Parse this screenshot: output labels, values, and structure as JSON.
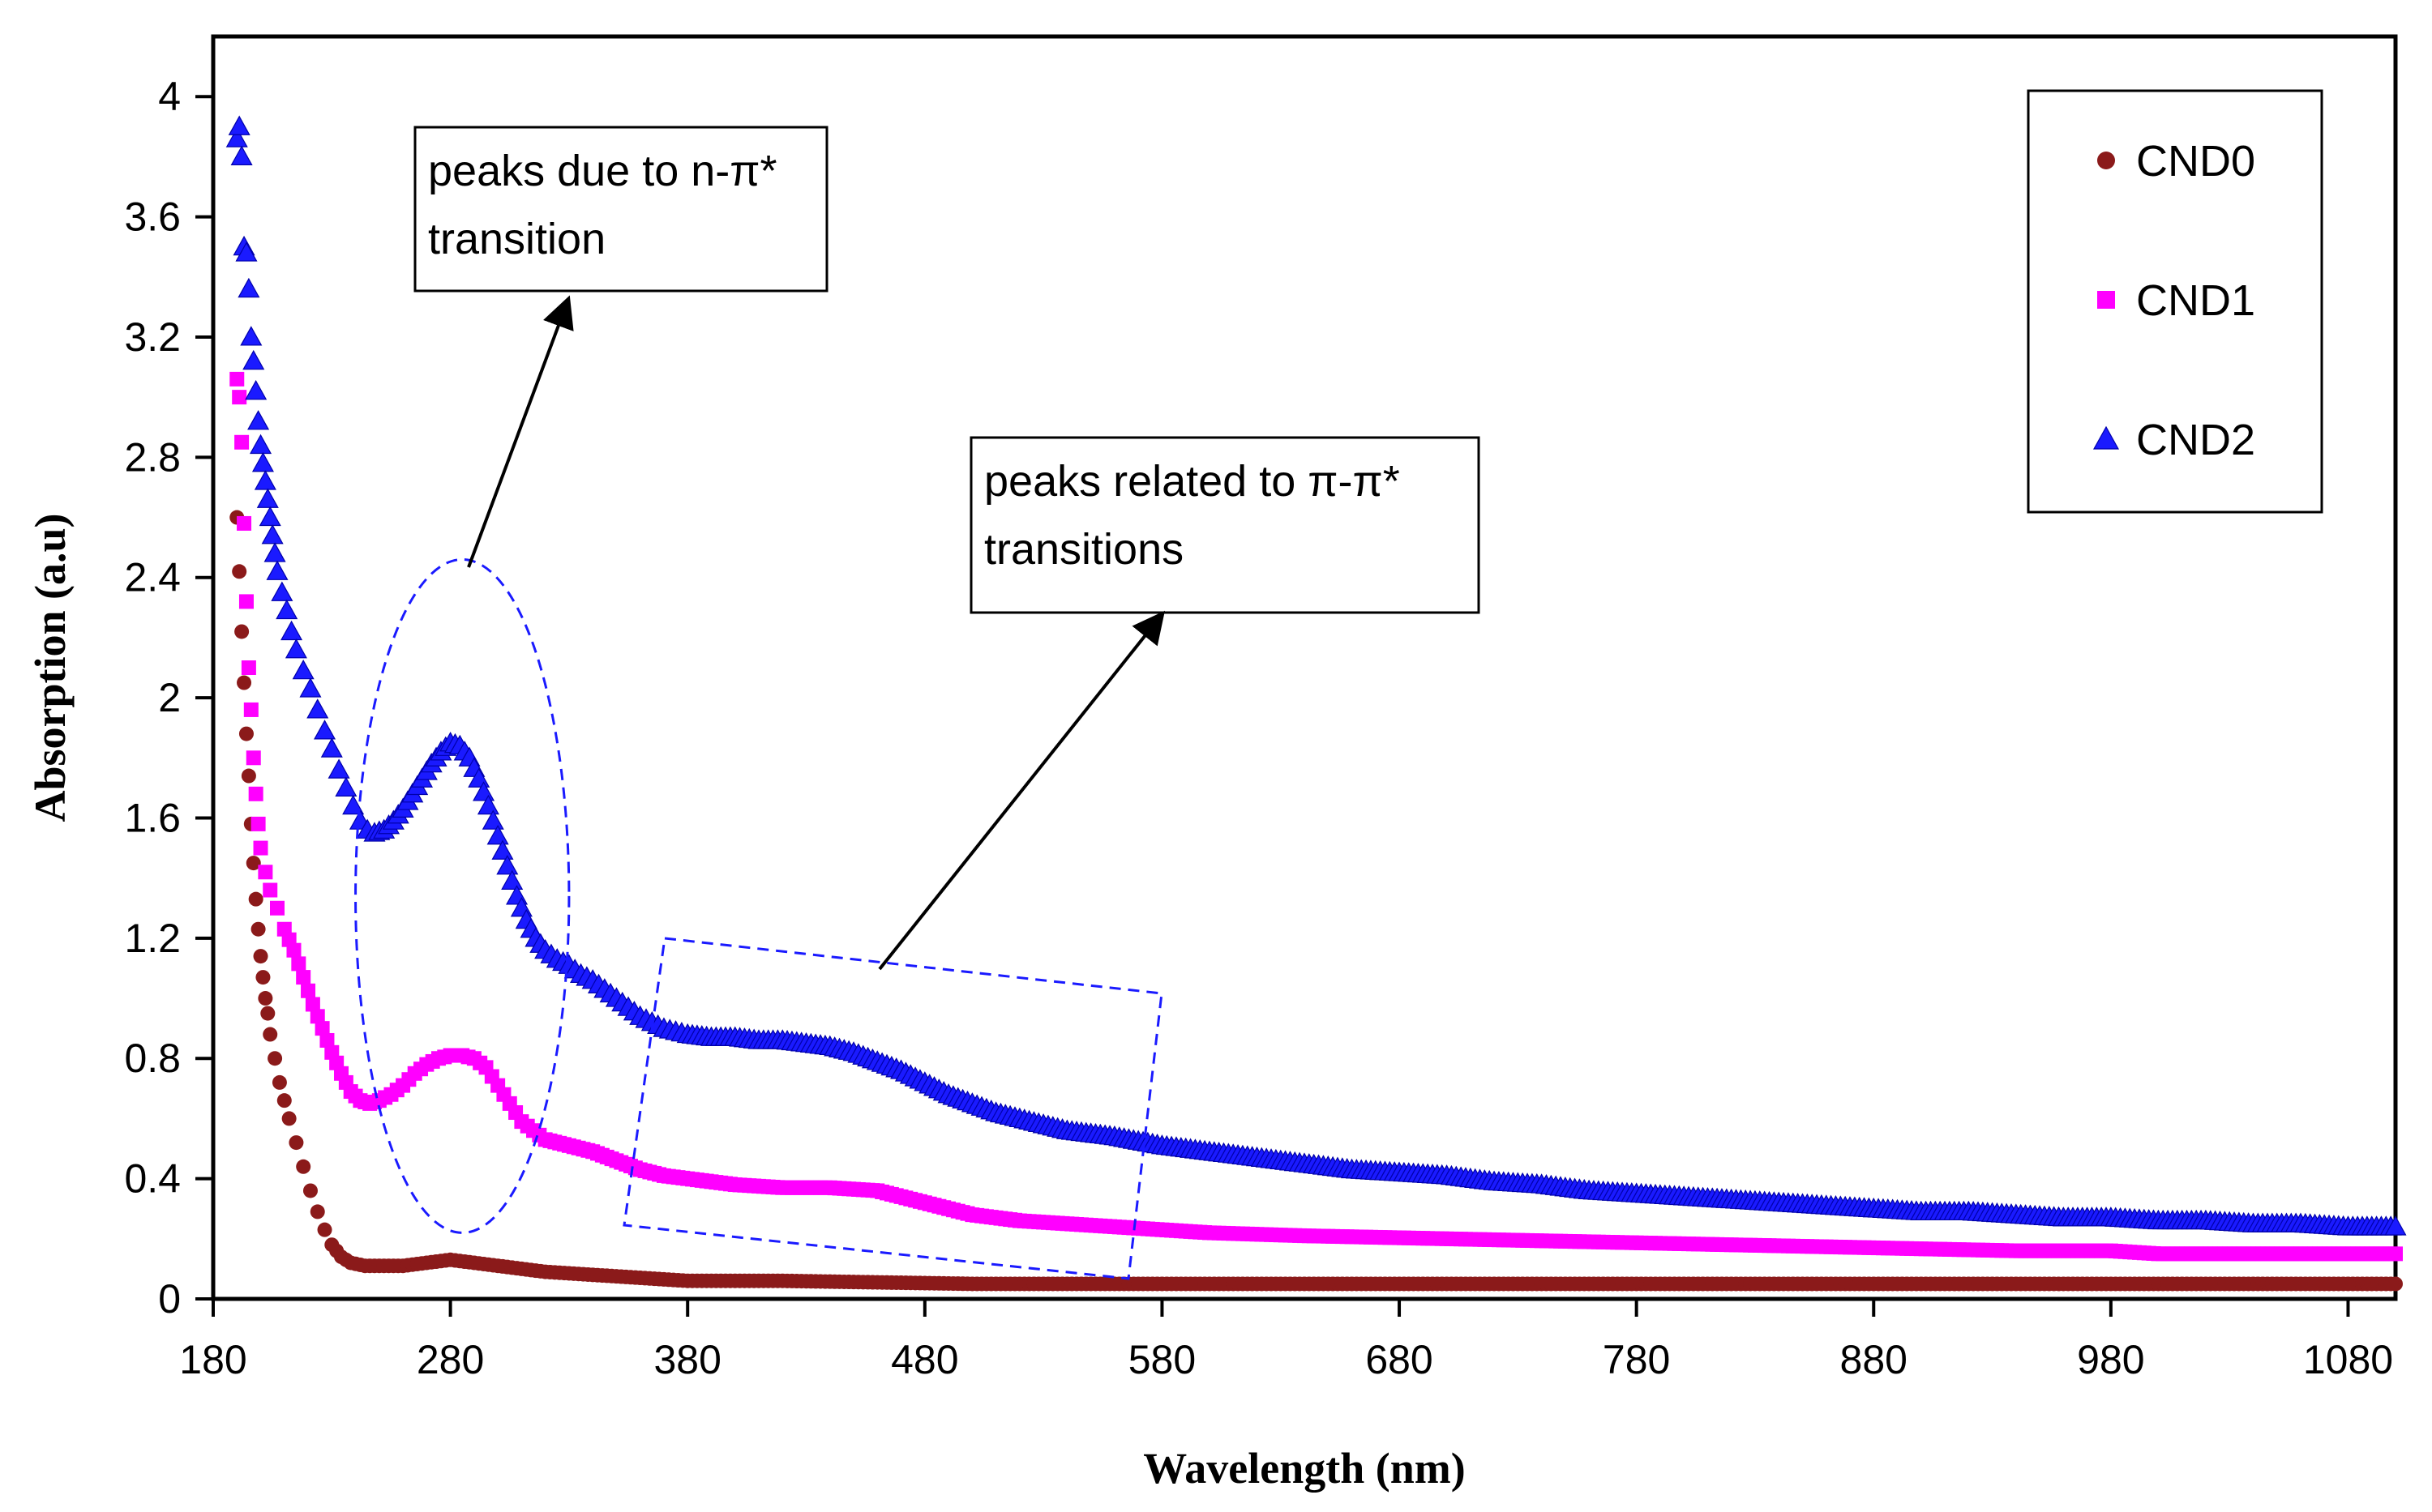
{
  "chart_data": {
    "type": "scatter",
    "title": "",
    "xlabel": "Wavelength (nm)",
    "ylabel": "Absorption (a.u)",
    "xlim": [
      180,
      1100
    ],
    "ylim": [
      0,
      4.2
    ],
    "x_ticks": [
      180,
      280,
      380,
      480,
      580,
      680,
      780,
      880,
      980,
      1080
    ],
    "x_tick_labels": [
      "180",
      "280",
      "380",
      "480",
      "580",
      "680",
      "780",
      "880",
      "980",
      "1080"
    ],
    "y_ticks": [
      0,
      0.4,
      0.8,
      1.2,
      1.6,
      2,
      2.4,
      2.8,
      3.2,
      3.6,
      4
    ],
    "y_tick_labels": [
      "0",
      "0.4",
      "0.8",
      "1.2",
      "1.6",
      "2",
      "2.4",
      "2.8",
      "3.2",
      "3.6",
      "4"
    ],
    "grid": false,
    "legend_position": "top-right",
    "series": [
      {
        "name": "CND0",
        "color": "#8b1a1a",
        "marker": "circle",
        "points": [
          [
            190,
            2.6
          ],
          [
            191,
            2.42
          ],
          [
            192,
            2.22
          ],
          [
            193,
            2.05
          ],
          [
            194,
            1.88
          ],
          [
            195,
            1.74
          ],
          [
            196,
            1.58
          ],
          [
            197,
            1.45
          ],
          [
            198,
            1.33
          ],
          [
            199,
            1.23
          ],
          [
            200,
            1.14
          ],
          [
            201,
            1.07
          ],
          [
            202,
            1.0
          ],
          [
            203,
            0.95
          ],
          [
            204,
            0.88
          ],
          [
            206,
            0.8
          ],
          [
            208,
            0.72
          ],
          [
            210,
            0.66
          ],
          [
            212,
            0.6
          ],
          [
            215,
            0.52
          ],
          [
            218,
            0.44
          ],
          [
            221,
            0.36
          ],
          [
            224,
            0.29
          ],
          [
            227,
            0.23
          ],
          [
            230,
            0.18
          ],
          [
            234,
            0.14
          ],
          [
            238,
            0.12
          ],
          [
            244,
            0.11
          ],
          [
            250,
            0.11
          ],
          [
            260,
            0.11
          ],
          [
            270,
            0.12
          ],
          [
            280,
            0.13
          ],
          [
            290,
            0.12
          ],
          [
            300,
            0.11
          ],
          [
            310,
            0.1
          ],
          [
            320,
            0.09
          ],
          [
            340,
            0.08
          ],
          [
            360,
            0.07
          ],
          [
            380,
            0.06
          ],
          [
            420,
            0.06
          ],
          [
            500,
            0.05
          ],
          [
            600,
            0.05
          ],
          [
            700,
            0.05
          ],
          [
            800,
            0.05
          ],
          [
            900,
            0.05
          ],
          [
            1000,
            0.05
          ],
          [
            1100,
            0.05
          ]
        ]
      },
      {
        "name": "CND1",
        "color": "#ff00ff",
        "marker": "square",
        "points": [
          [
            190,
            3.06
          ],
          [
            191,
            3.0
          ],
          [
            192,
            2.85
          ],
          [
            193,
            2.58
          ],
          [
            194,
            2.32
          ],
          [
            195,
            2.1
          ],
          [
            196,
            1.96
          ],
          [
            197,
            1.8
          ],
          [
            198,
            1.68
          ],
          [
            199,
            1.58
          ],
          [
            200,
            1.5
          ],
          [
            202,
            1.42
          ],
          [
            204,
            1.36
          ],
          [
            207,
            1.3
          ],
          [
            210,
            1.23
          ],
          [
            214,
            1.16
          ],
          [
            218,
            1.07
          ],
          [
            222,
            0.98
          ],
          [
            226,
            0.9
          ],
          [
            230,
            0.82
          ],
          [
            234,
            0.75
          ],
          [
            238,
            0.69
          ],
          [
            242,
            0.66
          ],
          [
            246,
            0.65
          ],
          [
            250,
            0.66
          ],
          [
            255,
            0.68
          ],
          [
            260,
            0.71
          ],
          [
            265,
            0.75
          ],
          [
            270,
            0.78
          ],
          [
            275,
            0.8
          ],
          [
            280,
            0.81
          ],
          [
            285,
            0.81
          ],
          [
            290,
            0.8
          ],
          [
            295,
            0.77
          ],
          [
            300,
            0.71
          ],
          [
            305,
            0.65
          ],
          [
            310,
            0.59
          ],
          [
            315,
            0.56
          ],
          [
            320,
            0.53
          ],
          [
            330,
            0.51
          ],
          [
            340,
            0.49
          ],
          [
            350,
            0.46
          ],
          [
            360,
            0.43
          ],
          [
            370,
            0.41
          ],
          [
            380,
            0.4
          ],
          [
            400,
            0.38
          ],
          [
            420,
            0.37
          ],
          [
            440,
            0.37
          ],
          [
            460,
            0.36
          ],
          [
            470,
            0.34
          ],
          [
            480,
            0.32
          ],
          [
            500,
            0.28
          ],
          [
            520,
            0.26
          ],
          [
            540,
            0.25
          ],
          [
            560,
            0.24
          ],
          [
            580,
            0.23
          ],
          [
            600,
            0.22
          ],
          [
            640,
            0.21
          ],
          [
            700,
            0.2
          ],
          [
            760,
            0.19
          ],
          [
            820,
            0.18
          ],
          [
            880,
            0.17
          ],
          [
            940,
            0.16
          ],
          [
            980,
            0.16
          ],
          [
            1000,
            0.15
          ],
          [
            1050,
            0.15
          ],
          [
            1100,
            0.15
          ]
        ]
      },
      {
        "name": "CND2",
        "color": "#1a1aff",
        "marker": "triangle",
        "points": [
          [
            190,
            3.86
          ],
          [
            191,
            3.9
          ],
          [
            192,
            3.8
          ],
          [
            193,
            3.5
          ],
          [
            194,
            3.48
          ],
          [
            195,
            3.36
          ],
          [
            196,
            3.2
          ],
          [
            197,
            3.12
          ],
          [
            198,
            3.02
          ],
          [
            199,
            2.92
          ],
          [
            200,
            2.84
          ],
          [
            201,
            2.78
          ],
          [
            202,
            2.72
          ],
          [
            203,
            2.66
          ],
          [
            204,
            2.6
          ],
          [
            205,
            2.54
          ],
          [
            206,
            2.48
          ],
          [
            207,
            2.42
          ],
          [
            209,
            2.35
          ],
          [
            211,
            2.29
          ],
          [
            213,
            2.22
          ],
          [
            215,
            2.16
          ],
          [
            218,
            2.09
          ],
          [
            221,
            2.03
          ],
          [
            224,
            1.96
          ],
          [
            227,
            1.89
          ],
          [
            230,
            1.83
          ],
          [
            233,
            1.76
          ],
          [
            236,
            1.7
          ],
          [
            239,
            1.64
          ],
          [
            242,
            1.59
          ],
          [
            245,
            1.56
          ],
          [
            248,
            1.55
          ],
          [
            252,
            1.56
          ],
          [
            256,
            1.59
          ],
          [
            260,
            1.63
          ],
          [
            264,
            1.68
          ],
          [
            268,
            1.73
          ],
          [
            272,
            1.78
          ],
          [
            276,
            1.82
          ],
          [
            280,
            1.85
          ],
          [
            284,
            1.84
          ],
          [
            288,
            1.8
          ],
          [
            292,
            1.73
          ],
          [
            296,
            1.64
          ],
          [
            300,
            1.54
          ],
          [
            304,
            1.44
          ],
          [
            308,
            1.34
          ],
          [
            312,
            1.26
          ],
          [
            316,
            1.2
          ],
          [
            320,
            1.16
          ],
          [
            325,
            1.13
          ],
          [
            330,
            1.11
          ],
          [
            335,
            1.08
          ],
          [
            340,
            1.06
          ],
          [
            345,
            1.03
          ],
          [
            350,
            1.0
          ],
          [
            355,
            0.97
          ],
          [
            360,
            0.94
          ],
          [
            365,
            0.92
          ],
          [
            370,
            0.9
          ],
          [
            375,
            0.89
          ],
          [
            380,
            0.88
          ],
          [
            390,
            0.87
          ],
          [
            400,
            0.87
          ],
          [
            410,
            0.86
          ],
          [
            420,
            0.86
          ],
          [
            430,
            0.85
          ],
          [
            440,
            0.84
          ],
          [
            450,
            0.82
          ],
          [
            460,
            0.79
          ],
          [
            470,
            0.76
          ],
          [
            480,
            0.72
          ],
          [
            490,
            0.68
          ],
          [
            500,
            0.65
          ],
          [
            510,
            0.62
          ],
          [
            520,
            0.6
          ],
          [
            530,
            0.58
          ],
          [
            540,
            0.56
          ],
          [
            550,
            0.55
          ],
          [
            560,
            0.54
          ],
          [
            580,
            0.51
          ],
          [
            600,
            0.49
          ],
          [
            620,
            0.47
          ],
          [
            640,
            0.45
          ],
          [
            660,
            0.43
          ],
          [
            680,
            0.42
          ],
          [
            700,
            0.41
          ],
          [
            720,
            0.39
          ],
          [
            740,
            0.38
          ],
          [
            760,
            0.36
          ],
          [
            780,
            0.35
          ],
          [
            800,
            0.34
          ],
          [
            820,
            0.33
          ],
          [
            840,
            0.32
          ],
          [
            860,
            0.31
          ],
          [
            880,
            0.3
          ],
          [
            900,
            0.29
          ],
          [
            920,
            0.29
          ],
          [
            940,
            0.28
          ],
          [
            960,
            0.27
          ],
          [
            980,
            0.27
          ],
          [
            1000,
            0.26
          ],
          [
            1020,
            0.26
          ],
          [
            1040,
            0.25
          ],
          [
            1060,
            0.25
          ],
          [
            1080,
            0.24
          ],
          [
            1100,
            0.24
          ]
        ]
      }
    ],
    "annotations": [
      {
        "id": "n-pi",
        "lines": [
          "peaks due to n-π*",
          "transition"
        ],
        "target_region": "ellipse",
        "region_x_range": [
          240,
          330
        ],
        "region_y_range": [
          0.22,
          2.46
        ]
      },
      {
        "id": "pi-pi",
        "lines": [
          "peaks related to π-π*",
          "transitions"
        ],
        "target_region": "rotated-rectangle",
        "region_x_range": [
          345,
          560
        ],
        "region_y_range": [
          0.05,
          1.2
        ]
      }
    ]
  }
}
